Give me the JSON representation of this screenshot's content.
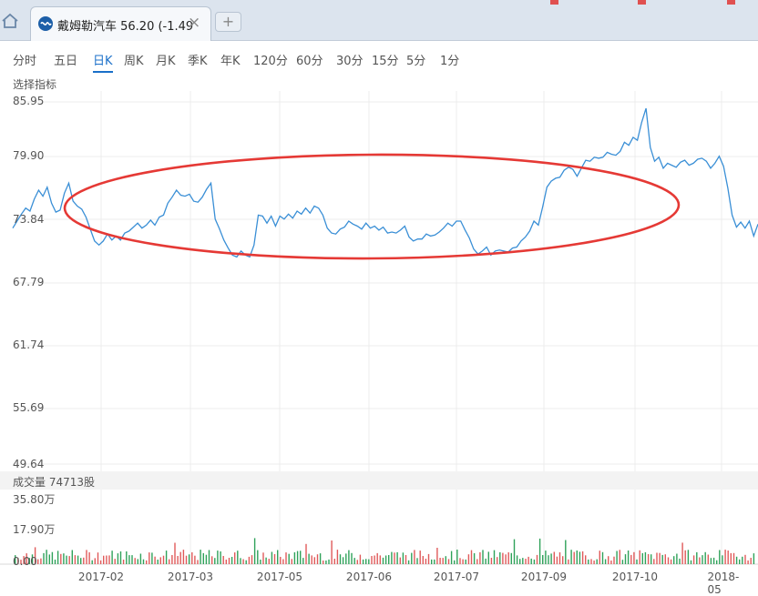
{
  "tab": {
    "title": "戴姆勒汽车 56.20 (-1.49"
  },
  "toolbar": {
    "periods": [
      "分时",
      "五日",
      "日K",
      "周K",
      "月K",
      "季K",
      "年K",
      "120分",
      "60分",
      "30分",
      "15分",
      "5分",
      "1分"
    ],
    "active_period": "日K",
    "indicator_label": "选择指标"
  },
  "colors": {
    "line": "#3a8fd6",
    "highlight_ellipse": "#e53935",
    "volume_up": "#e05a5a",
    "volume_down": "#2fa25a"
  },
  "chart_data": {
    "type": "line",
    "y_ticks": [
      "85.95",
      "79.90",
      "73.84",
      "67.79",
      "61.74",
      "55.69",
      "49.64"
    ],
    "ylim": [
      49.64,
      85.95
    ],
    "x_tick_labels": [
      "2017-02",
      "2017-03",
      "2017-05",
      "2017-06",
      "2017-07",
      "2017-09",
      "2017-10",
      "2018-05"
    ],
    "price": [
      73.3,
      74.0,
      74.7,
      75.3,
      75.0,
      76.2,
      77.1,
      76.5,
      77.4,
      75.8,
      74.9,
      75.1,
      76.8,
      77.8,
      76.0,
      75.5,
      75.2,
      74.4,
      73.2,
      72.0,
      71.6,
      72.0,
      72.7,
      72.1,
      72.5,
      72.1,
      72.8,
      73.0,
      73.4,
      73.8,
      73.3,
      73.6,
      74.1,
      73.6,
      74.4,
      74.6,
      75.8,
      76.4,
      77.1,
      76.6,
      76.5,
      76.7,
      76.0,
      75.9,
      76.4,
      77.2,
      77.8,
      74.2,
      73.2,
      72.1,
      71.3,
      70.6,
      70.4,
      71.0,
      70.6,
      70.4,
      71.6,
      74.6,
      74.5,
      73.8,
      74.5,
      73.5,
      74.5,
      74.2,
      74.7,
      74.3,
      75.0,
      74.7,
      75.3,
      74.8,
      75.5,
      75.3,
      74.6,
      73.3,
      72.8,
      72.7,
      73.2,
      73.4,
      74.0,
      73.7,
      73.5,
      73.2,
      73.8,
      73.3,
      73.5,
      73.1,
      73.4,
      72.8,
      72.9,
      72.8,
      73.1,
      73.5,
      72.4,
      72.0,
      72.2,
      72.2,
      72.7,
      72.5,
      72.6,
      72.9,
      73.3,
      73.8,
      73.5,
      74.0,
      74.0,
      73.1,
      72.3,
      71.2,
      70.7,
      71.0,
      71.4,
      70.6,
      71.0,
      71.1,
      71.0,
      70.9,
      71.3,
      71.4,
      72.0,
      72.4,
      73.0,
      74.0,
      73.6,
      75.4,
      77.4,
      78.0,
      78.3,
      78.4,
      79.1,
      79.4,
      79.2,
      78.5,
      79.3,
      80.1,
      80.0,
      80.4,
      80.3,
      80.4,
      80.9,
      80.7,
      80.6,
      81.0,
      81.9,
      81.6,
      82.4,
      82.1,
      83.9,
      85.3,
      81.4,
      80.0,
      80.4,
      79.3,
      79.8,
      79.6,
      79.4,
      79.9,
      80.1,
      79.6,
      79.8,
      80.2,
      80.3,
      80.0,
      79.3,
      79.8,
      80.5,
      79.5,
      77.3,
      74.6,
      73.4,
      73.9,
      73.3,
      74.0,
      72.5,
      73.7
    ]
  },
  "volume": {
    "title": "成交量 74713股",
    "ticks": [
      "35.80万",
      "17.90万",
      "0.00"
    ],
    "ylim": [
      0,
      358000
    ]
  }
}
